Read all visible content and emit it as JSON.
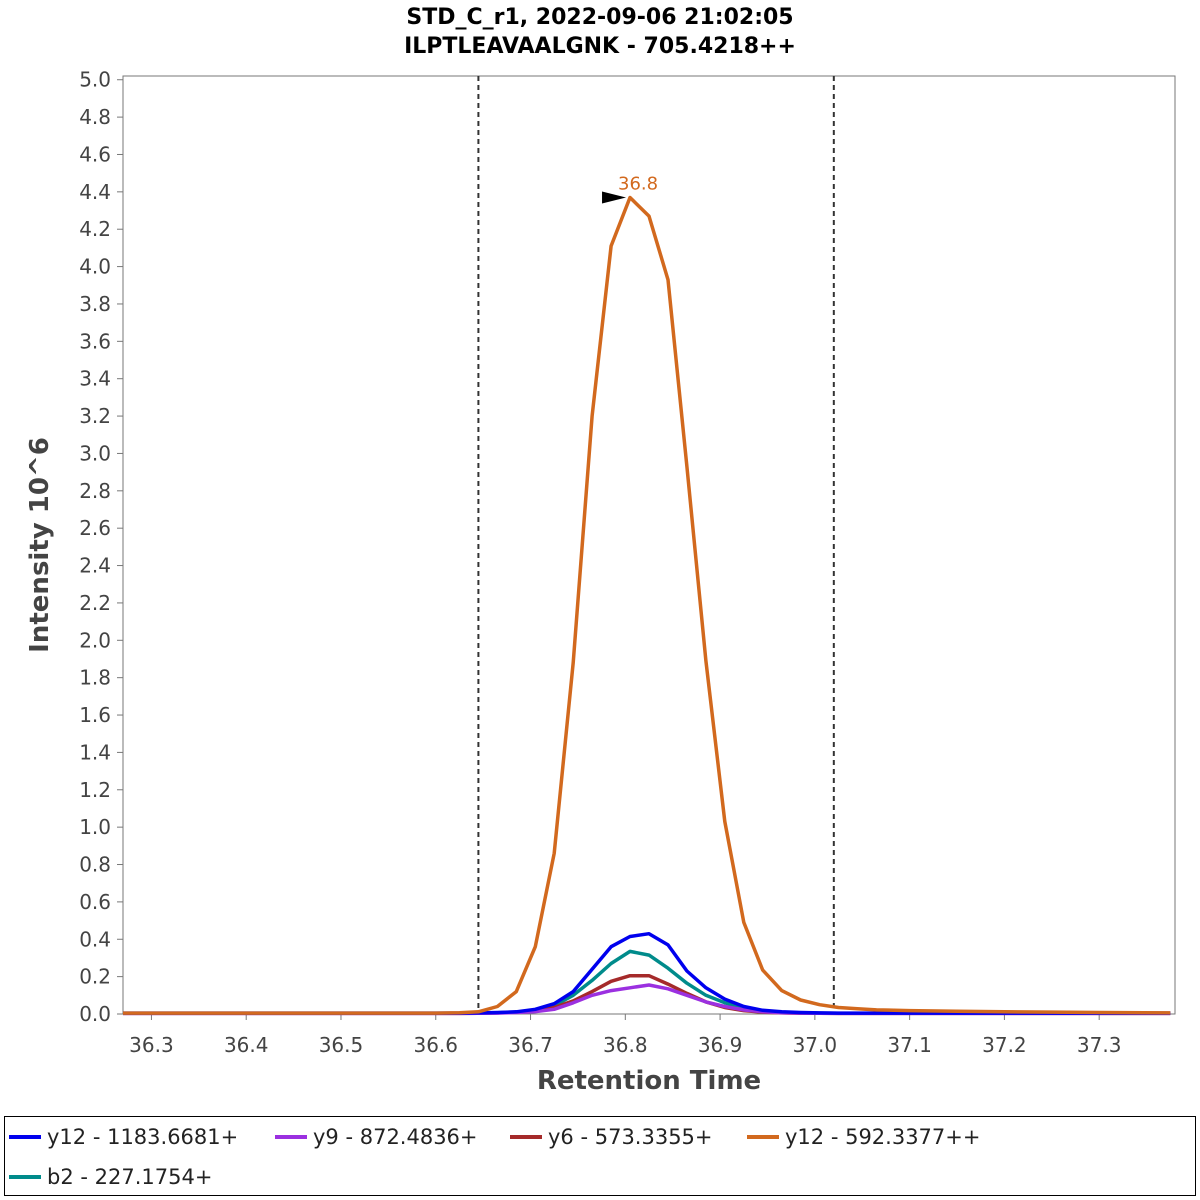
{
  "chart_data": {
    "type": "line",
    "title": [
      "STD_C_r1, 2022-09-06 21:02:05",
      "ILPTLEAVAALGNK - 705.4218++"
    ],
    "xlabel": "Retention Time",
    "ylabel": "Intensity 10^6",
    "xlim": [
      36.27,
      37.38
    ],
    "ylim": [
      0,
      5.02
    ],
    "xticks": [
      "36.3",
      "36.4",
      "36.5",
      "36.6",
      "36.7",
      "36.8",
      "36.9",
      "37.0",
      "37.1",
      "37.2",
      "37.3"
    ],
    "yticks": [
      "0.0",
      "0.2",
      "0.4",
      "0.6",
      "0.8",
      "1.0",
      "1.2",
      "1.4",
      "1.6",
      "1.8",
      "2.0",
      "2.2",
      "2.4",
      "2.6",
      "2.8",
      "3.0",
      "3.2",
      "3.4",
      "3.6",
      "3.8",
      "4.0",
      "4.2",
      "4.4",
      "4.6",
      "4.8",
      "5.0"
    ],
    "boundaries": [
      36.645,
      37.02
    ],
    "peak_annotation": {
      "label": "36.8",
      "x": 36.805,
      "y": 4.37
    },
    "x": [
      36.27,
      36.3,
      36.35,
      36.4,
      36.45,
      36.5,
      36.55,
      36.6,
      36.625,
      36.645,
      36.665,
      36.685,
      36.705,
      36.725,
      36.745,
      36.765,
      36.785,
      36.805,
      36.825,
      36.845,
      36.865,
      36.885,
      36.905,
      36.925,
      36.945,
      36.965,
      36.985,
      37.005,
      37.025,
      37.045,
      37.065,
      37.1,
      37.15,
      37.2,
      37.25,
      37.3,
      37.375
    ],
    "series": [
      {
        "name": "y12 - 1183.6681+",
        "color": "#0000ee",
        "values": [
          0.005,
          0.005,
          0.005,
          0.005,
          0.005,
          0.005,
          0.005,
          0.005,
          0.005,
          0.006,
          0.008,
          0.012,
          0.025,
          0.055,
          0.12,
          0.24,
          0.36,
          0.415,
          0.43,
          0.37,
          0.23,
          0.14,
          0.08,
          0.04,
          0.02,
          0.012,
          0.008,
          0.006,
          0.005,
          0.005,
          0.005,
          0.005,
          0.005,
          0.005,
          0.005,
          0.005,
          0.005
        ]
      },
      {
        "name": "y9 - 872.4836+",
        "color": "#9b30e0",
        "values": [
          0.003,
          0.003,
          0.003,
          0.003,
          0.003,
          0.003,
          0.003,
          0.003,
          0.003,
          0.004,
          0.005,
          0.008,
          0.013,
          0.025,
          0.06,
          0.1,
          0.125,
          0.14,
          0.155,
          0.135,
          0.1,
          0.065,
          0.04,
          0.022,
          0.012,
          0.007,
          0.005,
          0.004,
          0.003,
          0.003,
          0.003,
          0.003,
          0.003,
          0.003,
          0.003,
          0.003,
          0.003
        ]
      },
      {
        "name": "y6 - 573.3355+",
        "color": "#a52a2a",
        "values": [
          0.003,
          0.003,
          0.003,
          0.003,
          0.003,
          0.003,
          0.003,
          0.003,
          0.003,
          0.004,
          0.006,
          0.01,
          0.018,
          0.035,
          0.07,
          0.12,
          0.175,
          0.205,
          0.205,
          0.16,
          0.11,
          0.065,
          0.035,
          0.018,
          0.01,
          0.006,
          0.004,
          0.004,
          0.003,
          0.003,
          0.003,
          0.003,
          0.003,
          0.003,
          0.003,
          0.003,
          0.003
        ]
      },
      {
        "name": "y12 - 592.3377++",
        "color": "#d2691e",
        "values": [
          0.005,
          0.005,
          0.005,
          0.005,
          0.005,
          0.005,
          0.005,
          0.005,
          0.007,
          0.012,
          0.04,
          0.12,
          0.36,
          0.86,
          1.88,
          3.2,
          4.11,
          4.37,
          4.27,
          3.93,
          2.93,
          1.89,
          1.03,
          0.49,
          0.235,
          0.125,
          0.075,
          0.05,
          0.035,
          0.028,
          0.022,
          0.018,
          0.015,
          0.012,
          0.01,
          0.008,
          0.006
        ]
      },
      {
        "name": "b2 - 227.1754+",
        "color": "#008b8b",
        "values": [
          0.004,
          0.004,
          0.004,
          0.004,
          0.004,
          0.004,
          0.004,
          0.004,
          0.004,
          0.005,
          0.007,
          0.01,
          0.02,
          0.045,
          0.1,
          0.18,
          0.27,
          0.335,
          0.315,
          0.245,
          0.165,
          0.1,
          0.06,
          0.03,
          0.016,
          0.009,
          0.006,
          0.005,
          0.004,
          0.004,
          0.004,
          0.004,
          0.004,
          0.004,
          0.004,
          0.004,
          0.004
        ]
      }
    ]
  }
}
